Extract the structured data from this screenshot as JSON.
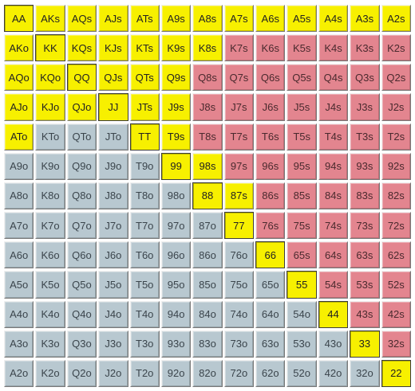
{
  "colors": {
    "selected": "#f7f000",
    "suited": "#e3858f",
    "offsuit": "#b8c8d0"
  },
  "rows": [
    [
      {
        "label": "AA",
        "s": "y"
      },
      {
        "label": "AKs",
        "s": "y"
      },
      {
        "label": "AQs",
        "s": "y"
      },
      {
        "label": "AJs",
        "s": "y"
      },
      {
        "label": "ATs",
        "s": "y"
      },
      {
        "label": "A9s",
        "s": "y"
      },
      {
        "label": "A8s",
        "s": "y"
      },
      {
        "label": "A7s",
        "s": "y"
      },
      {
        "label": "A6s",
        "s": "y"
      },
      {
        "label": "A5s",
        "s": "y"
      },
      {
        "label": "A4s",
        "s": "y"
      },
      {
        "label": "A3s",
        "s": "y"
      },
      {
        "label": "A2s",
        "s": "y"
      }
    ],
    [
      {
        "label": "AKo",
        "s": "y"
      },
      {
        "label": "KK",
        "s": "y"
      },
      {
        "label": "KQs",
        "s": "y"
      },
      {
        "label": "KJs",
        "s": "y"
      },
      {
        "label": "KTs",
        "s": "y"
      },
      {
        "label": "K9s",
        "s": "y"
      },
      {
        "label": "K8s",
        "s": "y"
      },
      {
        "label": "K7s",
        "s": "r"
      },
      {
        "label": "K6s",
        "s": "r"
      },
      {
        "label": "K5s",
        "s": "r"
      },
      {
        "label": "K4s",
        "s": "r"
      },
      {
        "label": "K3s",
        "s": "r"
      },
      {
        "label": "K2s",
        "s": "r"
      }
    ],
    [
      {
        "label": "AQo",
        "s": "y"
      },
      {
        "label": "KQo",
        "s": "y"
      },
      {
        "label": "QQ",
        "s": "y"
      },
      {
        "label": "QJs",
        "s": "y"
      },
      {
        "label": "QTs",
        "s": "y"
      },
      {
        "label": "Q9s",
        "s": "y"
      },
      {
        "label": "Q8s",
        "s": "r"
      },
      {
        "label": "Q7s",
        "s": "r"
      },
      {
        "label": "Q6s",
        "s": "r"
      },
      {
        "label": "Q5s",
        "s": "r"
      },
      {
        "label": "Q4s",
        "s": "r"
      },
      {
        "label": "Q3s",
        "s": "r"
      },
      {
        "label": "Q2s",
        "s": "r"
      }
    ],
    [
      {
        "label": "AJo",
        "s": "y"
      },
      {
        "label": "KJo",
        "s": "y"
      },
      {
        "label": "QJo",
        "s": "y"
      },
      {
        "label": "JJ",
        "s": "y"
      },
      {
        "label": "JTs",
        "s": "y"
      },
      {
        "label": "J9s",
        "s": "y"
      },
      {
        "label": "J8s",
        "s": "r"
      },
      {
        "label": "J7s",
        "s": "r"
      },
      {
        "label": "J6s",
        "s": "r"
      },
      {
        "label": "J5s",
        "s": "r"
      },
      {
        "label": "J4s",
        "s": "r"
      },
      {
        "label": "J3s",
        "s": "r"
      },
      {
        "label": "J2s",
        "s": "r"
      }
    ],
    [
      {
        "label": "ATo",
        "s": "y"
      },
      {
        "label": "KTo",
        "s": "g"
      },
      {
        "label": "QTo",
        "s": "g"
      },
      {
        "label": "JTo",
        "s": "g"
      },
      {
        "label": "TT",
        "s": "y"
      },
      {
        "label": "T9s",
        "s": "y"
      },
      {
        "label": "T8s",
        "s": "r"
      },
      {
        "label": "T7s",
        "s": "r"
      },
      {
        "label": "T6s",
        "s": "r"
      },
      {
        "label": "T5s",
        "s": "r"
      },
      {
        "label": "T4s",
        "s": "r"
      },
      {
        "label": "T3s",
        "s": "r"
      },
      {
        "label": "T2s",
        "s": "r"
      }
    ],
    [
      {
        "label": "A9o",
        "s": "g"
      },
      {
        "label": "K9o",
        "s": "g"
      },
      {
        "label": "Q9o",
        "s": "g"
      },
      {
        "label": "J9o",
        "s": "g"
      },
      {
        "label": "T9o",
        "s": "g"
      },
      {
        "label": "99",
        "s": "y"
      },
      {
        "label": "98s",
        "s": "y"
      },
      {
        "label": "97s",
        "s": "r"
      },
      {
        "label": "96s",
        "s": "r"
      },
      {
        "label": "95s",
        "s": "r"
      },
      {
        "label": "94s",
        "s": "r"
      },
      {
        "label": "93s",
        "s": "r"
      },
      {
        "label": "92s",
        "s": "r"
      }
    ],
    [
      {
        "label": "A8o",
        "s": "g"
      },
      {
        "label": "K8o",
        "s": "g"
      },
      {
        "label": "Q8o",
        "s": "g"
      },
      {
        "label": "J8o",
        "s": "g"
      },
      {
        "label": "T8o",
        "s": "g"
      },
      {
        "label": "98o",
        "s": "g"
      },
      {
        "label": "88",
        "s": "y"
      },
      {
        "label": "87s",
        "s": "y"
      },
      {
        "label": "86s",
        "s": "r"
      },
      {
        "label": "85s",
        "s": "r"
      },
      {
        "label": "84s",
        "s": "r"
      },
      {
        "label": "83s",
        "s": "r"
      },
      {
        "label": "82s",
        "s": "r"
      }
    ],
    [
      {
        "label": "A7o",
        "s": "g"
      },
      {
        "label": "K7o",
        "s": "g"
      },
      {
        "label": "Q7o",
        "s": "g"
      },
      {
        "label": "J7o",
        "s": "g"
      },
      {
        "label": "T7o",
        "s": "g"
      },
      {
        "label": "97o",
        "s": "g"
      },
      {
        "label": "87o",
        "s": "g"
      },
      {
        "label": "77",
        "s": "y"
      },
      {
        "label": "76s",
        "s": "r"
      },
      {
        "label": "75s",
        "s": "r"
      },
      {
        "label": "74s",
        "s": "r"
      },
      {
        "label": "73s",
        "s": "r"
      },
      {
        "label": "72s",
        "s": "r"
      }
    ],
    [
      {
        "label": "A6o",
        "s": "g"
      },
      {
        "label": "K6o",
        "s": "g"
      },
      {
        "label": "Q6o",
        "s": "g"
      },
      {
        "label": "J6o",
        "s": "g"
      },
      {
        "label": "T6o",
        "s": "g"
      },
      {
        "label": "96o",
        "s": "g"
      },
      {
        "label": "86o",
        "s": "g"
      },
      {
        "label": "76o",
        "s": "g"
      },
      {
        "label": "66",
        "s": "y"
      },
      {
        "label": "65s",
        "s": "r"
      },
      {
        "label": "64s",
        "s": "r"
      },
      {
        "label": "63s",
        "s": "r"
      },
      {
        "label": "62s",
        "s": "r"
      }
    ],
    [
      {
        "label": "A5o",
        "s": "g"
      },
      {
        "label": "K5o",
        "s": "g"
      },
      {
        "label": "Q5o",
        "s": "g"
      },
      {
        "label": "J5o",
        "s": "g"
      },
      {
        "label": "T5o",
        "s": "g"
      },
      {
        "label": "95o",
        "s": "g"
      },
      {
        "label": "85o",
        "s": "g"
      },
      {
        "label": "75o",
        "s": "g"
      },
      {
        "label": "65o",
        "s": "g"
      },
      {
        "label": "55",
        "s": "y"
      },
      {
        "label": "54s",
        "s": "r"
      },
      {
        "label": "53s",
        "s": "r"
      },
      {
        "label": "52s",
        "s": "r"
      }
    ],
    [
      {
        "label": "A4o",
        "s": "g"
      },
      {
        "label": "K4o",
        "s": "g"
      },
      {
        "label": "Q4o",
        "s": "g"
      },
      {
        "label": "J4o",
        "s": "g"
      },
      {
        "label": "T4o",
        "s": "g"
      },
      {
        "label": "94o",
        "s": "g"
      },
      {
        "label": "84o",
        "s": "g"
      },
      {
        "label": "74o",
        "s": "g"
      },
      {
        "label": "64o",
        "s": "g"
      },
      {
        "label": "54o",
        "s": "g"
      },
      {
        "label": "44",
        "s": "y"
      },
      {
        "label": "43s",
        "s": "r"
      },
      {
        "label": "42s",
        "s": "r"
      }
    ],
    [
      {
        "label": "A3o",
        "s": "g"
      },
      {
        "label": "K3o",
        "s": "g"
      },
      {
        "label": "Q3o",
        "s": "g"
      },
      {
        "label": "J3o",
        "s": "g"
      },
      {
        "label": "T3o",
        "s": "g"
      },
      {
        "label": "93o",
        "s": "g"
      },
      {
        "label": "83o",
        "s": "g"
      },
      {
        "label": "73o",
        "s": "g"
      },
      {
        "label": "63o",
        "s": "g"
      },
      {
        "label": "53o",
        "s": "g"
      },
      {
        "label": "43o",
        "s": "g"
      },
      {
        "label": "33",
        "s": "y"
      },
      {
        "label": "32s",
        "s": "r"
      }
    ],
    [
      {
        "label": "A2o",
        "s": "g"
      },
      {
        "label": "K2o",
        "s": "g"
      },
      {
        "label": "Q2o",
        "s": "g"
      },
      {
        "label": "J2o",
        "s": "g"
      },
      {
        "label": "T2o",
        "s": "g"
      },
      {
        "label": "92o",
        "s": "g"
      },
      {
        "label": "82o",
        "s": "g"
      },
      {
        "label": "72o",
        "s": "g"
      },
      {
        "label": "62o",
        "s": "g"
      },
      {
        "label": "52o",
        "s": "g"
      },
      {
        "label": "42o",
        "s": "g"
      },
      {
        "label": "32o",
        "s": "g"
      },
      {
        "label": "22",
        "s": "y"
      }
    ]
  ]
}
